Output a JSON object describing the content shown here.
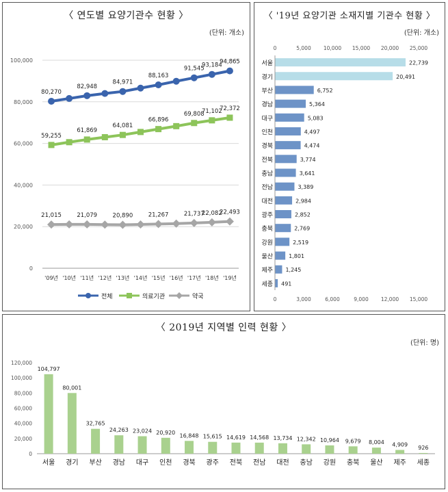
{
  "panel1": {
    "title": "〈 연도별 요양기관수 현황 〉",
    "unit": "(단위: 개소)",
    "chart_data": {
      "type": "line",
      "categories": [
        "'09년",
        "'10년",
        "'11년",
        "'12년",
        "'13년",
        "'14년",
        "'15년",
        "'16년",
        "'17년",
        "'18년",
        "'19년"
      ],
      "ylim": [
        0,
        100000
      ],
      "yticks": [
        "0",
        "20,000",
        "40,000",
        "60,000",
        "80,000",
        "100,000"
      ],
      "yticks_values": [
        0,
        20000,
        40000,
        60000,
        80000,
        100000
      ],
      "series": [
        {
          "name": "전체",
          "color": "#3a64ad",
          "marker": "circle",
          "values": [
            80270,
            81600,
            82948,
            84000,
            84971,
            86600,
            88163,
            89900,
            91545,
            93184,
            94865
          ],
          "labels": [
            "80,270",
            "",
            "82,948",
            "",
            "84,971",
            "",
            "88,163",
            "",
            "91,545",
            "93,184",
            "94,865"
          ]
        },
        {
          "name": "의료기관",
          "color": "#8dc45a",
          "marker": "square",
          "values": [
            59255,
            60600,
            61869,
            63000,
            64081,
            65500,
            66896,
            68300,
            69808,
            71102,
            72372
          ],
          "labels": [
            "59,255",
            "",
            "61,869",
            "",
            "64,081",
            "",
            "66,896",
            "",
            "69,808",
            "71,102",
            "72,372"
          ]
        },
        {
          "name": "약국",
          "color": "#a6a6a6",
          "marker": "diamond",
          "values": [
            21015,
            21100,
            21079,
            20950,
            20890,
            21050,
            21267,
            21450,
            21737,
            22082,
            22493
          ],
          "labels": [
            "21,015",
            "",
            "21,079",
            "",
            "20,890",
            "",
            "21,267",
            "",
            "21,737",
            "22,082",
            "22,493"
          ]
        }
      ]
    }
  },
  "panel2": {
    "title": "〈 '19년 요양기관 소재지별 기관수 현황 〉",
    "unit": "(단위: 개소)",
    "chart_data": {
      "type": "bar",
      "orientation": "horizontal",
      "categories": [
        "서울",
        "경기",
        "부산",
        "경남",
        "대구",
        "인천",
        "경북",
        "전북",
        "충남",
        "전남",
        "대전",
        "광주",
        "충북",
        "강원",
        "울산",
        "제주",
        "세종"
      ],
      "values": [
        22739,
        20491,
        6752,
        5364,
        5083,
        4497,
        4474,
        3774,
        3641,
        3389,
        2984,
        2852,
        2769,
        2519,
        1801,
        1245,
        491
      ],
      "labels": [
        "22,739",
        "20,491",
        "6,752",
        "5,364",
        "5,083",
        "4,497",
        "4,474",
        "3,774",
        "3,641",
        "3,389",
        "2,984",
        "2,852",
        "2,769",
        "2,519",
        "1,801",
        "1,245",
        "491"
      ],
      "top_axis": {
        "lim": [
          0,
          25000
        ],
        "ticks": [
          "0",
          "5,000",
          "10,000",
          "15,000",
          "20,000",
          "25,000"
        ]
      },
      "bottom_axis": {
        "lim": [
          0,
          15000
        ],
        "ticks": [
          "0",
          "3,000",
          "6,000",
          "9,000",
          "12,000",
          "15,000"
        ]
      },
      "colors": {
        "highlight": "#b7dde8",
        "normal": "#6d93c7"
      }
    }
  },
  "panel3": {
    "title": "〈 2019년 지역별 인력 현황 〉",
    "unit": "(단위: 명)",
    "chart_data": {
      "type": "bar",
      "categories": [
        "서울",
        "경기",
        "부산",
        "경남",
        "대구",
        "인천",
        "경북",
        "광주",
        "전북",
        "전남",
        "대전",
        "충남",
        "강원",
        "충북",
        "울산",
        "제주",
        "세종"
      ],
      "values": [
        104797,
        80001,
        32765,
        24263,
        23024,
        20920,
        16848,
        15615,
        14619,
        14568,
        13734,
        12342,
        10964,
        9679,
        8004,
        4909,
        926
      ],
      "labels": [
        "104,797",
        "80,001",
        "32,765",
        "24,263",
        "23,024",
        "20,920",
        "16,848",
        "15,615",
        "14,619",
        "14,568",
        "13,734",
        "12,342",
        "10,964",
        "9,679",
        "8,004",
        "4,909",
        "926"
      ],
      "ylim": [
        0,
        120000
      ],
      "yticks": [
        "0",
        "20,000",
        "40,000",
        "60,000",
        "80,000",
        "100,000",
        "120,000"
      ],
      "yticks_values": [
        0,
        20000,
        40000,
        60000,
        80000,
        100000,
        120000
      ],
      "color": "#a9d18e"
    }
  }
}
